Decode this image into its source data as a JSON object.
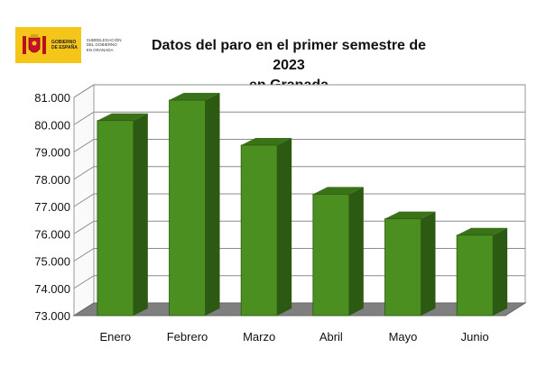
{
  "logo": {
    "org_name": "GOBIERNO DE ESPAÑA",
    "sub_name": "SUBDELEGACIÓN DEL GOBIERNO EN GRANADA",
    "crest_icon": "spain-coat-of-arms-icon"
  },
  "chart_data": {
    "type": "bar",
    "title_line1": "Datos del paro en el primer semestre de 2023",
    "title_line2": "en Granada",
    "categories": [
      "Enero",
      "Febrero",
      "Marzo",
      "Abril",
      "Mayo",
      "Junio"
    ],
    "values": [
      80150,
      80900,
      79250,
      77450,
      76550,
      75950
    ],
    "ylim": [
      73000,
      81000
    ],
    "yticks": [
      "73.000",
      "74.000",
      "75.000",
      "76.000",
      "77.000",
      "78.000",
      "79.000",
      "80.000",
      "81.000"
    ],
    "xlabel": "",
    "ylabel": "",
    "grid": true,
    "bar_color": "#4a8f1f",
    "bar_side_color": "#2d5a12",
    "bar_top_color": "#3a7218",
    "floor_color": "#7f7f7f"
  }
}
